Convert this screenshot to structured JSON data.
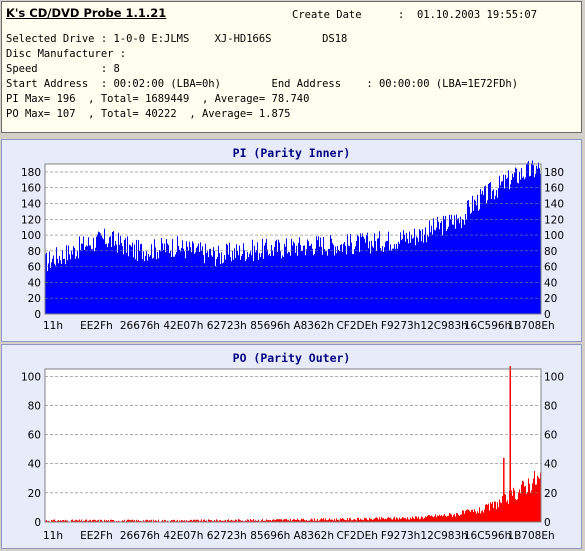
{
  "app_title": "K's CD/DVD Probe 1.1.21",
  "info": {
    "create_date_label": "Create Date",
    "create_date_value": ":  01.10.2003 19:55:07",
    "lines": [
      "Selected Drive : 1-0-0 E:JLMS    XJ-HD166S        DS18",
      "Disc Manufacturer :",
      "Speed          : 8",
      "Start Address  : 00:02:00 (LBA=0h)        End Address    : 00:00:00 (LBA=1E72FDh)",
      "PI Max= 196  , Total= 1689449  , Average= 78.740",
      "PO Max= 107  , Total= 40222  , Average= 1.875"
    ]
  },
  "chart_data": [
    {
      "type": "area",
      "title": "PI (Parity Inner)",
      "ylim": [
        0,
        190
      ],
      "yticks": [
        0,
        20,
        40,
        60,
        80,
        100,
        120,
        140,
        160,
        180
      ],
      "categories": [
        "11h",
        "EE2Fh",
        "26676h",
        "42E07h",
        "62723h",
        "85696h",
        "A8362h",
        "CF2DEh",
        "F9273h",
        "12C983h",
        "16C596h",
        "1B708Eh"
      ],
      "grid": true,
      "color": "#0000ff",
      "profile_x_fraction": [
        0,
        0.02,
        0.05,
        0.08,
        0.12,
        0.15,
        0.18,
        0.22,
        0.26,
        0.3,
        0.35,
        0.4,
        0.45,
        0.5,
        0.55,
        0.6,
        0.65,
        0.7,
        0.75,
        0.8,
        0.84,
        0.86,
        0.9,
        0.93,
        0.96,
        0.98,
        1.0
      ],
      "profile_values": [
        65,
        72,
        78,
        88,
        95,
        90,
        80,
        82,
        86,
        80,
        74,
        80,
        82,
        85,
        88,
        88,
        90,
        94,
        100,
        112,
        122,
        138,
        155,
        168,
        178,
        182,
        185
      ]
    },
    {
      "type": "area",
      "title": "PO (Parity Outer)",
      "ylim": [
        0,
        105
      ],
      "yticks": [
        0,
        20,
        40,
        60,
        80,
        100
      ],
      "categories": [
        "11h",
        "EE2Fh",
        "26676h",
        "42E07h",
        "62723h",
        "85696h",
        "A8362h",
        "CF2DEh",
        "F9273h",
        "12C983h",
        "16C596h",
        "1B708Eh"
      ],
      "grid": true,
      "color": "#ff0000",
      "profile_x_fraction": [
        0,
        0.3,
        0.5,
        0.65,
        0.75,
        0.82,
        0.88,
        0.92,
        0.95,
        0.98,
        1.0
      ],
      "profile_values": [
        1,
        1,
        1.5,
        2,
        3,
        5,
        8,
        14,
        20,
        28,
        30
      ],
      "spikes": [
        {
          "x_fraction": 0.925,
          "value": 44
        },
        {
          "x_fraction": 0.938,
          "value": 107
        }
      ]
    }
  ]
}
